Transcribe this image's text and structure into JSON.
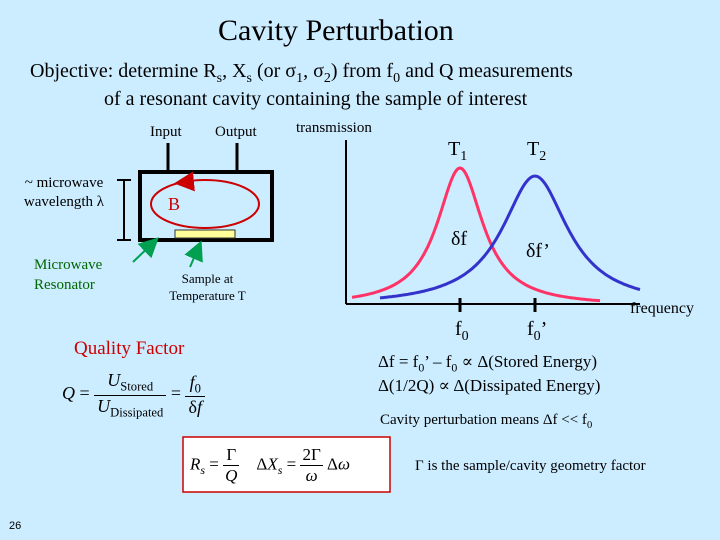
{
  "title": "Cavity Perturbation",
  "objective": {
    "line1": "Objective: determine Rs, Xs (or σ1, σ2) from f0 and Q measurements",
    "line2": "of a resonant cavity containing the sample of interest"
  },
  "cavity": {
    "input_label": "Input",
    "output_label": "Output",
    "wavelength_label": "~ microwave wavelength λ",
    "field_label": "B",
    "resonator_label": "Microwave Resonator",
    "sample_label": "Sample at Temperature T"
  },
  "quality_factor": {
    "heading": "Quality Factor"
  },
  "plot": {
    "ylabel": "transmission",
    "xlabel": "frequency",
    "curve1_label": "T1",
    "curve2_label": "T2",
    "width1_label": "δf",
    "width2_label": "δf’",
    "peak1_label": "f0",
    "peak2_label": "f0’",
    "colors": {
      "curve1": "#FF3366",
      "curve2": "#3333CC"
    }
  },
  "relations": {
    "line1": "Δf = f0’ – f0 ∝ Δ(Stored Energy)",
    "line2": "Δ(1/2Q) ∝ Δ(Dissipated Energy)",
    "perturbation_note": "Cavity perturbation means Δf << f0",
    "geometry_note": "Γ is the sample/cavity geometry factor"
  },
  "page_number": "26"
}
